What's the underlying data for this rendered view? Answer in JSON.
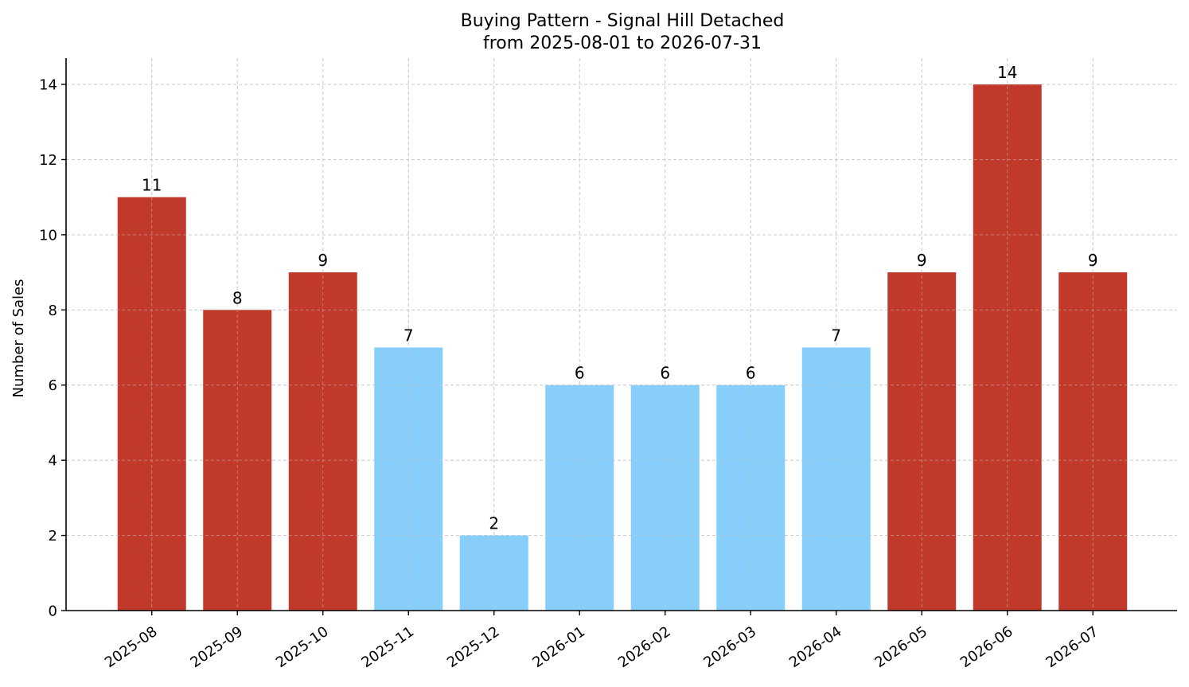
{
  "chart_data": {
    "type": "bar",
    "title": "Buying Pattern - Signal Hill Detached",
    "subtitle": "from 2025-08-01 to 2026-07-31",
    "xlabel": "",
    "ylabel": "Number of Sales",
    "categories": [
      "2025-08",
      "2025-09",
      "2025-10",
      "2025-11",
      "2025-12",
      "2026-01",
      "2026-02",
      "2026-03",
      "2026-04",
      "2026-05",
      "2026-06",
      "2026-07"
    ],
    "values": [
      11,
      8,
      9,
      7,
      2,
      6,
      6,
      6,
      7,
      9,
      14,
      9
    ],
    "bar_colors": [
      "#c0392b",
      "#c0392b",
      "#c0392b",
      "#87cefa",
      "#87cefa",
      "#87cefa",
      "#87cefa",
      "#87cefa",
      "#87cefa",
      "#c0392b",
      "#c0392b",
      "#c0392b"
    ],
    "ylim": [
      0,
      14.7
    ],
    "yticks": [
      0,
      2,
      4,
      6,
      8,
      10,
      12,
      14
    ],
    "grid": true,
    "legend": "none",
    "data_labels": true
  }
}
